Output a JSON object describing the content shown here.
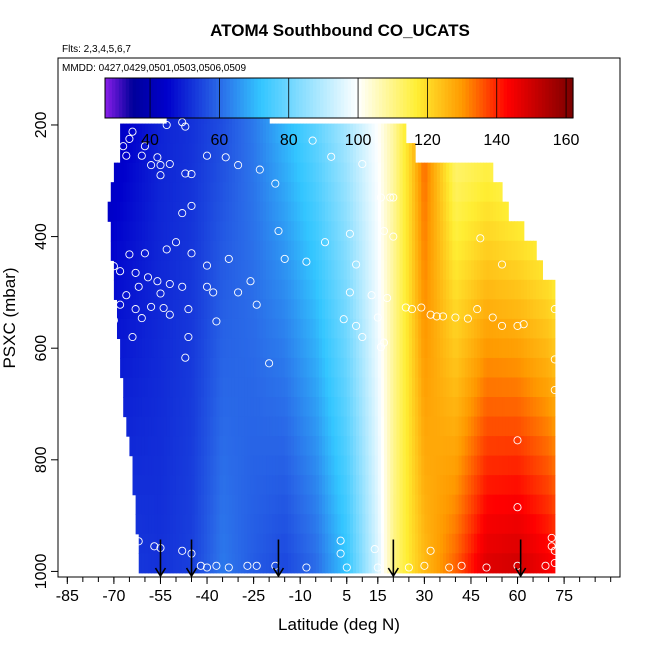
{
  "chart_data": {
    "type": "heatmap",
    "title": "ATOM4 Southbound CO_UCATS",
    "subtitle_flights": "Flts: 2,3,4,5,6,7",
    "subtitle_dates": "MMDD: 0427,0429,0501,0503,0506,0509",
    "xlabel": "Latitude (deg N)",
    "ylabel": "PSXC (mbar)",
    "xlim": [
      -88,
      93
    ],
    "ylim": [
      1010,
      80
    ],
    "y_reversed": true,
    "grid": false,
    "x_ticks": [
      -85,
      -70,
      -55,
      -40,
      -25,
      -10,
      5,
      15,
      30,
      45,
      60,
      75
    ],
    "y_ticks": [
      200,
      400,
      600,
      800,
      1000
    ],
    "colorbar": {
      "range": [
        27,
        162
      ],
      "ticks": [
        40,
        60,
        80,
        100,
        120,
        140,
        160
      ],
      "colors": [
        "#8a1eea",
        "#00009a",
        "#0000cc",
        "#2a6ae8",
        "#33c6ff",
        "#ffffff",
        "#ffee33",
        "#ff9a00",
        "#ff0000",
        "#7a0000"
      ],
      "stops": [
        27,
        35,
        45,
        60,
        72,
        100,
        117,
        130,
        143,
        162
      ]
    },
    "profile_markers_lat": [
      -55,
      -45,
      -17,
      20,
      61
    ],
    "levels_mbar": [
      180,
      215,
      250,
      285,
      320,
      355,
      390,
      425,
      460,
      495,
      530,
      565,
      600,
      635,
      670,
      705,
      740,
      775,
      810,
      845,
      880,
      915,
      950,
      985
    ],
    "zonal_profile": {
      "lat": [
        -85,
        -75,
        -65,
        -55,
        -45,
        -35,
        -25,
        -15,
        -5,
        5,
        15,
        20,
        25,
        30,
        40,
        50,
        60,
        70,
        75
      ],
      "upper_ppb": [
        32,
        40,
        45,
        50,
        52,
        56,
        62,
        70,
        78,
        88,
        100,
        108,
        120,
        135,
        110,
        112,
        108,
        105,
        100
      ],
      "lower_ppb": [
        55,
        54,
        53,
        52,
        54,
        62,
        58,
        55,
        60,
        72,
        95,
        110,
        118,
        125,
        135,
        148,
        150,
        145,
        140
      ]
    },
    "coverage": {
      "lat_south_edge_by_level": [
        -53,
        -68,
        -68,
        -70,
        -71,
        -72,
        -71,
        -71,
        -70,
        -70,
        -69,
        -69,
        -68,
        -68,
        -67,
        -67,
        -66,
        -65,
        -64,
        -64,
        -63,
        -63,
        -62,
        -62
      ],
      "lat_north_edge_by_level": [
        -20,
        24,
        27,
        52,
        55,
        57,
        62,
        66,
        68,
        72,
        72,
        72,
        72,
        72,
        72,
        72,
        72,
        72,
        72,
        72,
        72,
        72,
        72,
        72
      ]
    },
    "observations": [
      {
        "lat": -53,
        "p": 200
      },
      {
        "lat": -48,
        "p": 195
      },
      {
        "lat": -47,
        "p": 203
      },
      {
        "lat": -64,
        "p": 212
      },
      {
        "lat": -65,
        "p": 225
      },
      {
        "lat": -67,
        "p": 238
      },
      {
        "lat": -60,
        "p": 238
      },
      {
        "lat": -56,
        "p": 258
      },
      {
        "lat": -58,
        "p": 272
      },
      {
        "lat": -74,
        "p": 255
      },
      {
        "lat": -66,
        "p": 255
      },
      {
        "lat": -61,
        "p": 255
      },
      {
        "lat": -55,
        "p": 272
      },
      {
        "lat": -52,
        "p": 270
      },
      {
        "lat": -47,
        "p": 287
      },
      {
        "lat": -45,
        "p": 288
      },
      {
        "lat": -40,
        "p": 255
      },
      {
        "lat": -34,
        "p": 258
      },
      {
        "lat": -30,
        "p": 272
      },
      {
        "lat": -23,
        "p": 280
      },
      {
        "lat": -18,
        "p": 305
      },
      {
        "lat": -6,
        "p": 228
      },
      {
        "lat": 0,
        "p": 257
      },
      {
        "lat": 10,
        "p": 270
      },
      {
        "lat": 16,
        "p": 330
      },
      {
        "lat": 19,
        "p": 330
      },
      {
        "lat": 20,
        "p": 330
      },
      {
        "lat": -55,
        "p": 290
      },
      {
        "lat": -48,
        "p": 358
      },
      {
        "lat": -45,
        "p": 345
      },
      {
        "lat": -17,
        "p": 390
      },
      {
        "lat": -2,
        "p": 410
      },
      {
        "lat": 6,
        "p": 395
      },
      {
        "lat": 17,
        "p": 390
      },
      {
        "lat": 20,
        "p": 400
      },
      {
        "lat": 48,
        "p": 403
      },
      {
        "lat": -65,
        "p": 432
      },
      {
        "lat": -60,
        "p": 430
      },
      {
        "lat": -53,
        "p": 423
      },
      {
        "lat": -50,
        "p": 410
      },
      {
        "lat": -45,
        "p": 430
      },
      {
        "lat": -40,
        "p": 452
      },
      {
        "lat": -33,
        "p": 440
      },
      {
        "lat": -15,
        "p": 440
      },
      {
        "lat": -8,
        "p": 445
      },
      {
        "lat": 8,
        "p": 450
      },
      {
        "lat": 55,
        "p": 450
      },
      {
        "lat": -80,
        "p": 467
      },
      {
        "lat": -70,
        "p": 453
      },
      {
        "lat": -68,
        "p": 462
      },
      {
        "lat": -63,
        "p": 465
      },
      {
        "lat": -59,
        "p": 473
      },
      {
        "lat": -56,
        "p": 480
      },
      {
        "lat": -52,
        "p": 485
      },
      {
        "lat": -62,
        "p": 490
      },
      {
        "lat": -73,
        "p": 490
      },
      {
        "lat": -66,
        "p": 505
      },
      {
        "lat": -55,
        "p": 502
      },
      {
        "lat": -48,
        "p": 490
      },
      {
        "lat": -40,
        "p": 490
      },
      {
        "lat": -38,
        "p": 500
      },
      {
        "lat": -30,
        "p": 500
      },
      {
        "lat": -26,
        "p": 480
      },
      {
        "lat": 6,
        "p": 500
      },
      {
        "lat": 13,
        "p": 505
      },
      {
        "lat": 18,
        "p": 510
      },
      {
        "lat": -77,
        "p": 528
      },
      {
        "lat": -68,
        "p": 522
      },
      {
        "lat": -63,
        "p": 530
      },
      {
        "lat": -58,
        "p": 526
      },
      {
        "lat": -54,
        "p": 528
      },
      {
        "lat": -46,
        "p": 530
      },
      {
        "lat": -24,
        "p": 522
      },
      {
        "lat": 4,
        "p": 548
      },
      {
        "lat": 15,
        "p": 545
      },
      {
        "lat": 24,
        "p": 527
      },
      {
        "lat": 26,
        "p": 530
      },
      {
        "lat": 29,
        "p": 527
      },
      {
        "lat": 32,
        "p": 540
      },
      {
        "lat": 34,
        "p": 543
      },
      {
        "lat": 36,
        "p": 543
      },
      {
        "lat": 40,
        "p": 545
      },
      {
        "lat": 44,
        "p": 547
      },
      {
        "lat": 47,
        "p": 530
      },
      {
        "lat": 52,
        "p": 545
      },
      {
        "lat": 55,
        "p": 560
      },
      {
        "lat": 62,
        "p": 557
      },
      {
        "lat": -70,
        "p": 550
      },
      {
        "lat": -61,
        "p": 546
      },
      {
        "lat": -52,
        "p": 540
      },
      {
        "lat": -37,
        "p": 552
      },
      {
        "lat": 8,
        "p": 560
      },
      {
        "lat": 72,
        "p": 530
      },
      {
        "lat": -64,
        "p": 580
      },
      {
        "lat": -46,
        "p": 580
      },
      {
        "lat": 10,
        "p": 580
      },
      {
        "lat": 16,
        "p": 598
      },
      {
        "lat": 17,
        "p": 590
      },
      {
        "lat": 60,
        "p": 560
      },
      {
        "lat": -47,
        "p": 617
      },
      {
        "lat": -20,
        "p": 627
      },
      {
        "lat": 72,
        "p": 620
      },
      {
        "lat": 72,
        "p": 675
      },
      {
        "lat": 60,
        "p": 765
      },
      {
        "lat": 60,
        "p": 885
      },
      {
        "lat": -70,
        "p": 948
      },
      {
        "lat": -66,
        "p": 950
      },
      {
        "lat": -67,
        "p": 940
      },
      {
        "lat": -62,
        "p": 946
      },
      {
        "lat": -57,
        "p": 955
      },
      {
        "lat": -55,
        "p": 958
      },
      {
        "lat": -48,
        "p": 963
      },
      {
        "lat": -45,
        "p": 968
      },
      {
        "lat": -72,
        "p": 955
      },
      {
        "lat": 3,
        "p": 945
      },
      {
        "lat": 3,
        "p": 968
      },
      {
        "lat": 14,
        "p": 960
      },
      {
        "lat": 32,
        "p": 963
      },
      {
        "lat": 71,
        "p": 940
      },
      {
        "lat": 71,
        "p": 955
      },
      {
        "lat": 72,
        "p": 963
      },
      {
        "lat": -42,
        "p": 990
      },
      {
        "lat": -40,
        "p": 993
      },
      {
        "lat": -37,
        "p": 990
      },
      {
        "lat": -33,
        "p": 993
      },
      {
        "lat": -27,
        "p": 990
      },
      {
        "lat": -24,
        "p": 990
      },
      {
        "lat": -18,
        "p": 990
      },
      {
        "lat": -8,
        "p": 993
      },
      {
        "lat": 5,
        "p": 993
      },
      {
        "lat": 15,
        "p": 993
      },
      {
        "lat": 25,
        "p": 993
      },
      {
        "lat": 30,
        "p": 990
      },
      {
        "lat": 38,
        "p": 993
      },
      {
        "lat": 42,
        "p": 990
      },
      {
        "lat": 50,
        "p": 993
      },
      {
        "lat": 60,
        "p": 990
      },
      {
        "lat": 69,
        "p": 990
      },
      {
        "lat": 72,
        "p": 985
      }
    ]
  }
}
